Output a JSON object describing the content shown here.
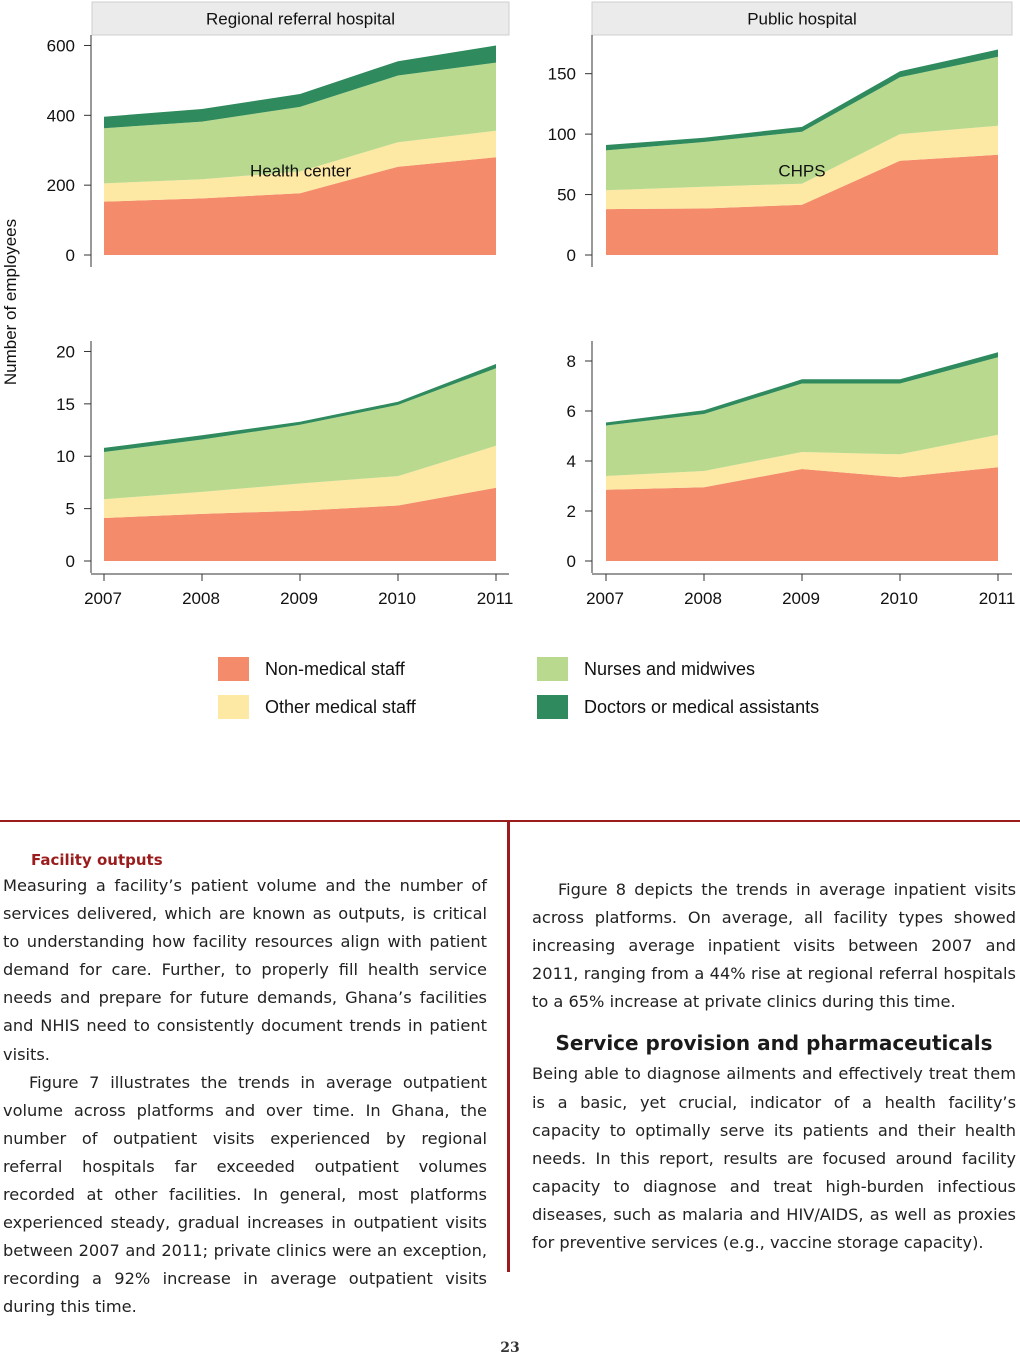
{
  "chart": {
    "y_axis_title": "Number of employees",
    "legend": [
      {
        "label": "Non-medical staff",
        "color": "#f48c6c"
      },
      {
        "label": "Nurses and midwives",
        "color": "#b9da8e"
      },
      {
        "label": "Other medical staff",
        "color": "#fde9a3"
      },
      {
        "label": "Doctors or medical assistants",
        "color": "#2f8a5d"
      }
    ]
  },
  "chart_data": [
    {
      "type": "area",
      "title": "Regional referral hospital",
      "x": [
        "2007",
        "2008",
        "2009",
        "2010",
        "2011"
      ],
      "ylabel": "Number of employees",
      "ylim": [
        0,
        630
      ],
      "yticks": [
        0,
        200,
        400,
        600
      ],
      "stacked": true,
      "series": [
        {
          "name": "Non-medical staff",
          "color": "#f48c6c",
          "values": [
            153,
            162,
            177,
            253,
            280
          ]
        },
        {
          "name": "Other medical staff",
          "color": "#fde9a3",
          "values": [
            52,
            55,
            62,
            70,
            76
          ]
        },
        {
          "name": "Nurses and midwives",
          "color": "#b9da8e",
          "values": [
            158,
            165,
            185,
            191,
            195
          ]
        },
        {
          "name": "Doctors or medical assistants",
          "color": "#2f8a5d",
          "values": [
            33,
            36,
            37,
            41,
            49
          ]
        }
      ]
    },
    {
      "type": "area",
      "title": "Public hospital",
      "x": [
        "2007",
        "2008",
        "2009",
        "2010",
        "2011"
      ],
      "ylim": [
        0,
        182
      ],
      "yticks": [
        0,
        50,
        100,
        150
      ],
      "stacked": true,
      "series": [
        {
          "name": "Non-medical staff",
          "color": "#f48c6c",
          "values": [
            38,
            38.5,
            41.5,
            78,
            83
          ]
        },
        {
          "name": "Other medical staff",
          "color": "#fde9a3",
          "values": [
            15.5,
            18,
            17.5,
            22,
            24
          ]
        },
        {
          "name": "Nurses and midwives",
          "color": "#b9da8e",
          "values": [
            33,
            37,
            43,
            47,
            57
          ]
        },
        {
          "name": "Doctors or medical assistants",
          "color": "#2f8a5d",
          "values": [
            4.5,
            3.5,
            4,
            5,
            6
          ]
        }
      ]
    },
    {
      "type": "area",
      "title": "Health center",
      "x": [
        "2007",
        "2008",
        "2009",
        "2010",
        "2011"
      ],
      "ylim": [
        0,
        21
      ],
      "yticks": [
        0,
        5,
        10,
        15,
        20
      ],
      "stacked": true,
      "series": [
        {
          "name": "Non-medical staff",
          "color": "#f48c6c",
          "values": [
            4.1,
            4.5,
            4.8,
            5.3,
            7.0
          ]
        },
        {
          "name": "Other medical staff",
          "color": "#fde9a3",
          "values": [
            1.8,
            2.1,
            2.6,
            2.8,
            4.0
          ]
        },
        {
          "name": "Nurses and midwives",
          "color": "#b9da8e",
          "values": [
            4.5,
            5.0,
            5.6,
            6.8,
            7.4
          ]
        },
        {
          "name": "Doctors or medical assistants",
          "color": "#2f8a5d",
          "values": [
            0.4,
            0.4,
            0.3,
            0.3,
            0.4
          ]
        }
      ]
    },
    {
      "type": "area",
      "title": "CHPS",
      "x": [
        "2007",
        "2008",
        "2009",
        "2010",
        "2011"
      ],
      "ylim": [
        0,
        8.8
      ],
      "yticks": [
        0,
        2,
        4,
        6,
        8
      ],
      "stacked": true,
      "series": [
        {
          "name": "Non-medical staff",
          "color": "#f48c6c",
          "values": [
            2.85,
            2.95,
            3.68,
            3.35,
            3.75
          ]
        },
        {
          "name": "Other medical staff",
          "color": "#fde9a3",
          "values": [
            0.55,
            0.65,
            0.68,
            0.92,
            1.3
          ]
        },
        {
          "name": "Nurses and midwives",
          "color": "#b9da8e",
          "values": [
            2.02,
            2.28,
            2.74,
            2.83,
            3.1
          ]
        },
        {
          "name": "Doctors or medical assistants",
          "color": "#2f8a5d",
          "values": [
            0.12,
            0.15,
            0.17,
            0.17,
            0.2
          ]
        }
      ]
    }
  ],
  "text": {
    "left_heading": "Facility outputs",
    "left_p1": "Measuring a facility’s patient volume and the number of services delivered, which are known as outputs, is critical to understanding how facility resources align with patient demand for care. Further, to properly fill health service needs and prepare for future demands, Ghana’s facilities and NHIS need to consistently document trends in patient visits.",
    "left_p2": "Figure 7 illustrates the trends in average outpatient volume across platforms and over time. In Ghana, the number of outpatient visits experienced by regional referral hospitals far exceeded outpatient volumes recorded at other facilities. In general, most platforms experienced steady, gradual increases in outpatient visits between 2007 and 2011; private clinics were an exception, recording a 92% increase in average outpatient visits during this time.",
    "right_p1": "Figure 8 depicts the trends in average inpatient visits across platforms. On average, all facility types showed increasing average inpatient visits between 2007 and 2011, ranging from a 44% rise at regional referral hospitals to a 65% increase at private clinics during this time.",
    "right_heading": "Service provision and pharmaceuticals",
    "right_p2": "Being able to diagnose ailments and effectively treat them is a basic, yet crucial, indicator of a health facility’s capacity to optimally serve its patients and their health needs. In this report, results are focused around facility capacity to diagnose and treat high-burden infectious diseases, such as malaria and HIV/AIDS, as well as proxies for preventive services (e.g., vaccine storage capacity).",
    "page_number": "23"
  }
}
